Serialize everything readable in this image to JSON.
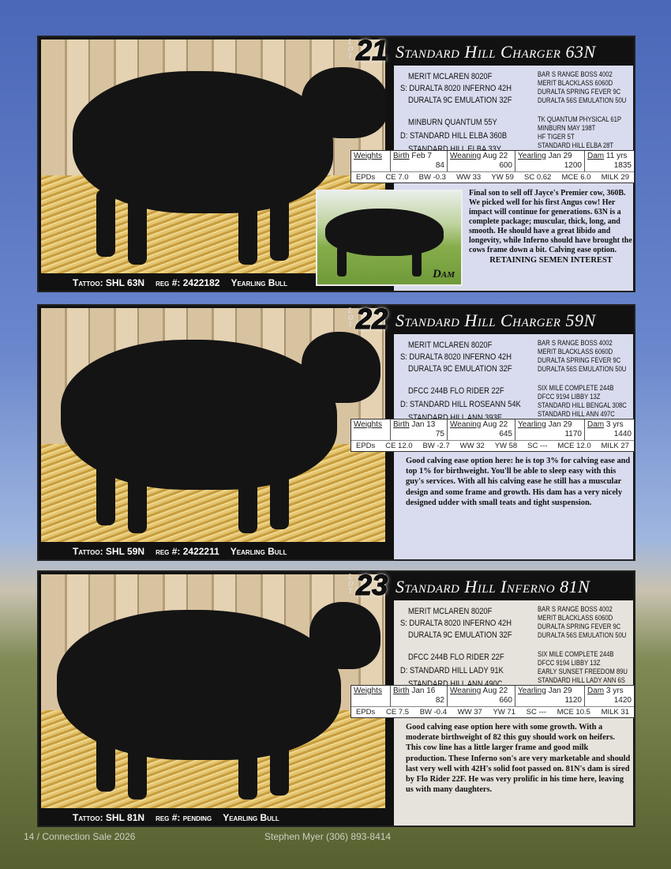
{
  "lots": [
    {
      "lot_label": "LOT",
      "number": "21",
      "title": "Standard Hill Charger 63N",
      "sire_line": [
        "MERIT MCLAREN 8020F",
        "S: DURALTA 8020 INFERNO 42H",
        "DURALTA 9C EMULATION 32F"
      ],
      "dam_line": [
        "MINBURN QUANTUM 55Y",
        "D: STANDARD HILL ELBA 360B",
        "STANDARD HILL ELBA 33Y"
      ],
      "sire_ancestors": [
        "BAR S RANGE BOSS 4002",
        "MERIT BLACKLASS 6060D",
        "DURALTA SPRING FEVER 9C",
        "DURALTA 56S EMULATION 50U"
      ],
      "dam_ancestors": [
        "TK QUANTUM PHYSICAL 61P",
        "MINBURN MAY 198T",
        "HF TIGER 5T",
        "STANDARD HILL ELBA 28T"
      ],
      "weights": {
        "label": "Weights",
        "birth": "Birth",
        "birth_date": "Feb 7",
        "birth_wt": "84",
        "weaning": "Weaning",
        "weaning_date": "Aug 22",
        "weaning_wt": "600",
        "yearling": "Yearling",
        "yearling_date": "Jan 29",
        "yearling_wt": "1200",
        "dam": "Dam",
        "dam_age": "11 yrs",
        "dam_wt": "1835"
      },
      "epds": [
        "EPDs",
        "CE 7.0",
        "BW -0.3",
        "WW 33",
        "YW 59",
        "SC 0.62",
        "MCE 6.0",
        "MILK 29"
      ],
      "description": "Final son to sell off Jayce's Premier cow, 360B. We picked well for his first Angus cow! Her impact will continue for generations. 63N is a complete package; muscular, thick, long, and smooth. He should have a great libido and longevity, while Inferno should have brought the cows frame down a bit. Calving ease option.",
      "note": "RETAINING SEMEN INTEREST",
      "dam_photo_label": "Dam",
      "caption": {
        "tattoo": "Tattoo: SHL 63N",
        "reg": "reg #: 2422182",
        "type": "Yearling Bull"
      }
    },
    {
      "lot_label": "LOT",
      "number": "22",
      "title": "Standard Hill Charger 59N",
      "sire_line": [
        "MERIT MCLAREN 8020F",
        "S: DURALTA 8020 INFERNO 42H",
        "DURALTA 9C EMULATION 32F"
      ],
      "dam_line": [
        "DFCC 244B FLO RIDER 22F",
        "D: STANDARD HILL ROSEANN 54K",
        "STANDARD HILL ANN 393E"
      ],
      "sire_ancestors": [
        "BAR S RANGE BOSS 4002",
        "MERIT BLACKLASS 6060D",
        "DURALTA SPRING FEVER 9C",
        "DURALTA 56S EMULATION 50U"
      ],
      "dam_ancestors": [
        "SIX MILE COMPLETE 244B",
        "DFCC 9194 LIBBY 13Z",
        "STANDARD HILL BENGAL 308C",
        "STANDARD HILL ANN 497C"
      ],
      "weights": {
        "label": "Weights",
        "birth": "Birth",
        "birth_date": "Jan 13",
        "birth_wt": "75",
        "weaning": "Weaning",
        "weaning_date": "Aug 22",
        "weaning_wt": "645",
        "yearling": "Yearling",
        "yearling_date": "Jan 29",
        "yearling_wt": "1170",
        "dam": "Dam",
        "dam_age": "3 yrs",
        "dam_wt": "1440"
      },
      "epds": [
        "EPDs",
        "CE 12.0",
        "BW -2.7",
        "WW 32",
        "YW 58",
        "SC ---",
        "MCE 12.0",
        "MILK 27"
      ],
      "description": "Good calving ease option here: he is top 3% for calving ease and top 1% for birthweight. You'll be able to sleep easy with this guy's services. With all his calving ease he still has a muscular design and some frame and growth. His dam has a very nicely designed udder with small teats and tight suspension.",
      "caption": {
        "tattoo": "Tattoo: SHL 59N",
        "reg": "reg #: 2422211",
        "type": "Yearling Bull"
      }
    },
    {
      "lot_label": "LOT",
      "number": "23",
      "title": "Standard Hill Inferno 81N",
      "sire_line": [
        "MERIT MCLAREN 8020F",
        "S: DURALTA 8020 INFERNO 42H",
        "DURALTA 9C EMULATION 32F"
      ],
      "dam_line": [
        "DFCC 244B FLO RIDER 22F",
        "D: STANDARD HILL LADY 91K",
        "STANDARD HILL ANN 490C"
      ],
      "sire_ancestors": [
        "BAR S RANGE BOSS 4002",
        "MERIT BLACKLASS 6060D",
        "DURALTA SPRING FEVER 9C",
        "DURALTA 56S EMULATION 50U"
      ],
      "dam_ancestors": [
        "SIX MILE COMPLETE 244B",
        "DFCC 9194 LIBBY 13Z",
        "EARLY SUNSET FREEDOM 89U",
        "STANDARD HILL LADY ANN 6S"
      ],
      "weights": {
        "label": "Weights",
        "birth": "Birth",
        "birth_date": "Jan 16",
        "birth_wt": "82",
        "weaning": "Weaning",
        "weaning_date": "Aug 22",
        "weaning_wt": "660",
        "yearling": "Yearling",
        "yearling_date": "Jan 29",
        "yearling_wt": "1120",
        "dam": "Dam",
        "dam_age": "3 yrs",
        "dam_wt": "1420"
      },
      "epds": [
        "EPDs",
        "CE 7.5",
        "BW -0.4",
        "WW 37",
        "YW 71",
        "SC ---",
        "MCE 10.5",
        "MILK 31"
      ],
      "description": "Good calving ease option here with some growth. With a moderate birthweight of 82 this guy should work on heifers. This cow line has a little larger frame and good milk production. These Inferno son's are very marketable and should last very well with 42H's solid foot passed on. 81N's dam is sired by Flo Rider 22F. He was very prolific in his time here, leaving us with many daughters.",
      "caption": {
        "tattoo": "Tattoo: SHL 81N",
        "reg": "reg #: pending",
        "type": "Yearling Bull"
      }
    }
  ],
  "footer": {
    "left": "14 / Connection Sale 2026",
    "right": "Stephen Myer (306) 893-8414"
  }
}
